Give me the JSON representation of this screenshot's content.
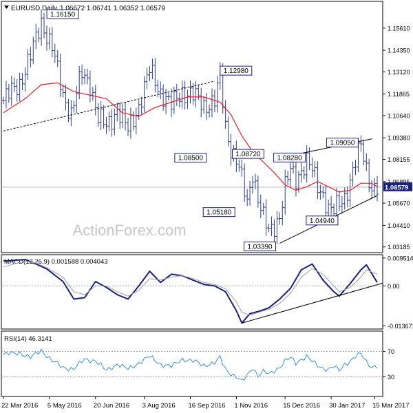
{
  "header": {
    "symbol": "EURUSD,Daily",
    "ohlc": "1.06672 1.06741 1.06352 1.06579"
  },
  "watermark": "ActionForex.com",
  "colors": {
    "price_bars": "#2e3d8a",
    "sma": "#e0202a",
    "macd_line": "#1a1f7a",
    "macd_signal": "#a0a0a0",
    "rsi_line": "#3a8fd8",
    "label_border": "#1a1f7a",
    "current_price_bg": "#1a1f7a"
  },
  "chart_data": [
    {
      "type": "ohlc",
      "title": "EURUSD,Daily",
      "x_tick_labels": [
        "22 Mar 2016",
        "5 May 2016",
        "20 Jun 2016",
        "3 Aug 2016",
        "16 Sep 2016",
        "1 Nov 2016",
        "15 Dec 2016",
        "30 Jan 2017",
        "15 Mar 2017"
      ],
      "y_tick_labels": [
        "1.15610",
        "1.14350",
        "1.13120",
        "1.11865",
        "1.10640",
        "1.09380",
        "1.08155",
        "1.06895",
        "1.05670",
        "1.04410",
        "1.03185"
      ],
      "ylim": [
        1.029,
        1.1705
      ],
      "current_price": 1.06579,
      "current_price_label": "1.06579",
      "annotations": [
        {
          "label": "1.16150",
          "value": 1.1615,
          "bar": 14
        },
        {
          "label": "1.12980",
          "value": 1.1298,
          "bar": 80
        },
        {
          "label": "1.08500",
          "value": 1.085,
          "bar": 78
        },
        {
          "label": "1.08720",
          "value": 1.0872,
          "bar": 84
        },
        {
          "label": "1.05180",
          "value": 1.0518,
          "bar": 88
        },
        {
          "label": "1.03390",
          "value": 1.0339,
          "bar": 99
        },
        {
          "label": "1.08280",
          "value": 1.0828,
          "bar": 113
        },
        {
          "label": "1.09050",
          "value": 1.0905,
          "bar": 132
        },
        {
          "label": "1.04940",
          "value": 1.0494,
          "bar": 124
        }
      ],
      "trendlines": [
        {
          "points": [
            [
              0,
              1.0977
            ],
            [
              78,
              1.126
            ]
          ],
          "style": "dashed"
        },
        {
          "points": [
            [
              102,
              1.0339
            ],
            [
              138,
              1.061
            ]
          ],
          "style": "solid"
        },
        {
          "points": [
            [
              103,
              1.0828
            ],
            [
              136,
              1.0932
            ]
          ],
          "style": "solid"
        }
      ],
      "close_path": [
        [
          0,
          1.115
        ],
        [
          6,
          1.125
        ],
        [
          10,
          1.14
        ],
        [
          14,
          1.16
        ],
        [
          18,
          1.145
        ],
        [
          22,
          1.118
        ],
        [
          25,
          1.108
        ],
        [
          29,
          1.13
        ],
        [
          32,
          1.125
        ],
        [
          35,
          1.105
        ],
        [
          38,
          1.1
        ],
        [
          42,
          1.11
        ],
        [
          46,
          1.098
        ],
        [
          50,
          1.112
        ],
        [
          54,
          1.132
        ],
        [
          58,
          1.12
        ],
        [
          62,
          1.112
        ],
        [
          66,
          1.12
        ],
        [
          70,
          1.118
        ],
        [
          74,
          1.112
        ],
        [
          78,
          1.115
        ],
        [
          80,
          1.128
        ],
        [
          82,
          1.1
        ],
        [
          84,
          1.088
        ],
        [
          86,
          1.082
        ],
        [
          88,
          1.07
        ],
        [
          90,
          1.056
        ],
        [
          92,
          1.075
        ],
        [
          94,
          1.06
        ],
        [
          96,
          1.048
        ],
        [
          98,
          1.04
        ],
        [
          100,
          1.044
        ],
        [
          102,
          1.05
        ],
        [
          104,
          1.066
        ],
        [
          106,
          1.075
        ],
        [
          108,
          1.07
        ],
        [
          110,
          1.076
        ],
        [
          112,
          1.081
        ],
        [
          114,
          1.075
        ],
        [
          116,
          1.066
        ],
        [
          118,
          1.062
        ],
        [
          120,
          1.054
        ],
        [
          122,
          1.052
        ],
        [
          124,
          1.056
        ],
        [
          126,
          1.06
        ],
        [
          128,
          1.07
        ],
        [
          130,
          1.08
        ],
        [
          132,
          1.089
        ],
        [
          134,
          1.076
        ],
        [
          136,
          1.066
        ],
        [
          138,
          1.0658
        ]
      ],
      "sma_path": [
        [
          0,
          1.108
        ],
        [
          8,
          1.116
        ],
        [
          14,
          1.124
        ],
        [
          20,
          1.125
        ],
        [
          26,
          1.12
        ],
        [
          32,
          1.118
        ],
        [
          38,
          1.116
        ],
        [
          44,
          1.108
        ],
        [
          50,
          1.106
        ],
        [
          56,
          1.111
        ],
        [
          62,
          1.114
        ],
        [
          68,
          1.117
        ],
        [
          74,
          1.117
        ],
        [
          80,
          1.114
        ],
        [
          84,
          1.107
        ],
        [
          88,
          1.095
        ],
        [
          92,
          1.086
        ],
        [
          96,
          1.08
        ],
        [
          100,
          1.074
        ],
        [
          104,
          1.067
        ],
        [
          108,
          1.064
        ],
        [
          112,
          1.066
        ],
        [
          116,
          1.069
        ],
        [
          120,
          1.066
        ],
        [
          124,
          1.063
        ],
        [
          128,
          1.064
        ],
        [
          132,
          1.068
        ],
        [
          136,
          1.068
        ],
        [
          138,
          1.066
        ]
      ]
    },
    {
      "type": "line",
      "title": "MACD(12,26,9) 0.001588 0.004043",
      "y_tick_labels": [
        "0.009514",
        "0.00",
        "-0.013671"
      ],
      "ylim": [
        -0.0145,
        0.0102
      ],
      "series": [
        {
          "name": "MACD",
          "values": [
            [
              0,
              0.0085
            ],
            [
              8,
              0.009
            ],
            [
              12,
              0.0075
            ],
            [
              16,
              0.0058
            ],
            [
              22,
              0.0015
            ],
            [
              26,
              -0.0045
            ],
            [
              30,
              -0.004
            ],
            [
              34,
              0.0015
            ],
            [
              38,
              -0.0005
            ],
            [
              42,
              -0.003
            ],
            [
              46,
              -0.0045
            ],
            [
              50,
              0.0
            ],
            [
              54,
              0.005
            ],
            [
              58,
              0.0012
            ],
            [
              62,
              0.004
            ],
            [
              66,
              0.0035
            ],
            [
              70,
              0.002
            ],
            [
              74,
              0.0005
            ],
            [
              78,
              0.0
            ],
            [
              82,
              -0.002
            ],
            [
              86,
              -0.0085
            ],
            [
              88,
              -0.0127
            ],
            [
              91,
              -0.0095
            ],
            [
              95,
              -0.0085
            ],
            [
              98,
              -0.0075
            ],
            [
              102,
              -0.0045
            ],
            [
              106,
              -0.0008
            ],
            [
              110,
              0.0055
            ],
            [
              114,
              0.0075
            ],
            [
              118,
              0.002
            ],
            [
              122,
              -0.002
            ],
            [
              124,
              -0.0035
            ],
            [
              128,
              0.0008
            ],
            [
              132,
              0.0055
            ],
            [
              134,
              0.0072
            ],
            [
              138,
              0.0012
            ]
          ]
        },
        {
          "name": "Signal",
          "values": [
            [
              0,
              0.0065
            ],
            [
              8,
              0.0085
            ],
            [
              12,
              0.0078
            ],
            [
              16,
              0.0062
            ],
            [
              22,
              0.003
            ],
            [
              26,
              -0.002
            ],
            [
              30,
              -0.003
            ],
            [
              34,
              0.0
            ],
            [
              38,
              0.0
            ],
            [
              42,
              -0.002
            ],
            [
              46,
              -0.0035
            ],
            [
              50,
              -0.0015
            ],
            [
              54,
              0.0025
            ],
            [
              58,
              0.002
            ],
            [
              62,
              0.003
            ],
            [
              66,
              0.0035
            ],
            [
              70,
              0.0025
            ],
            [
              74,
              0.0012
            ],
            [
              78,
              0.0005
            ],
            [
              82,
              -0.001
            ],
            [
              86,
              -0.0055
            ],
            [
              88,
              -0.009
            ],
            [
              91,
              -0.01
            ],
            [
              95,
              -0.0088
            ],
            [
              98,
              -0.008
            ],
            [
              102,
              -0.006
            ],
            [
              106,
              -0.0025
            ],
            [
              110,
              0.003
            ],
            [
              114,
              0.006
            ],
            [
              118,
              0.004
            ],
            [
              122,
              0.0
            ],
            [
              124,
              -0.002
            ],
            [
              128,
              -0.0005
            ],
            [
              132,
              0.003
            ],
            [
              134,
              0.0055
            ],
            [
              138,
              0.004
            ]
          ]
        }
      ],
      "trendlines": [
        {
          "points": [
            [
              88,
              -0.0127
            ],
            [
              138,
              0.0
            ]
          ],
          "style": "solid"
        }
      ]
    },
    {
      "type": "line",
      "title": "RSI(14) 46.3141",
      "y_tick_labels": [
        "70",
        "30"
      ],
      "ylim": [
        0,
        100
      ],
      "series": [
        {
          "name": "RSI",
          "values": [
            [
              0,
              65
            ],
            [
              6,
              68
            ],
            [
              10,
              60
            ],
            [
              14,
              72
            ],
            [
              18,
              55
            ],
            [
              22,
              45
            ],
            [
              26,
              42
            ],
            [
              30,
              58
            ],
            [
              34,
              55
            ],
            [
              38,
              40
            ],
            [
              42,
              50
            ],
            [
              46,
              42
            ],
            [
              50,
              52
            ],
            [
              54,
              62
            ],
            [
              58,
              50
            ],
            [
              62,
              46
            ],
            [
              66,
              58
            ],
            [
              70,
              55
            ],
            [
              74,
              48
            ],
            [
              78,
              52
            ],
            [
              80,
              60
            ],
            [
              82,
              42
            ],
            [
              84,
              35
            ],
            [
              86,
              30
            ],
            [
              88,
              22
            ],
            [
              90,
              32
            ],
            [
              92,
              45
            ],
            [
              94,
              32
            ],
            [
              96,
              38
            ],
            [
              98,
              34
            ],
            [
              100,
              40
            ],
            [
              102,
              45
            ],
            [
              104,
              55
            ],
            [
              106,
              60
            ],
            [
              108,
              52
            ],
            [
              110,
              58
            ],
            [
              112,
              62
            ],
            [
              114,
              54
            ],
            [
              116,
              48
            ],
            [
              118,
              44
            ],
            [
              120,
              42
            ],
            [
              122,
              46
            ],
            [
              124,
              40
            ],
            [
              126,
              50
            ],
            [
              128,
              55
            ],
            [
              130,
              62
            ],
            [
              132,
              66
            ],
            [
              134,
              54
            ],
            [
              136,
              46
            ],
            [
              138,
              46.3
            ]
          ]
        }
      ]
    }
  ]
}
